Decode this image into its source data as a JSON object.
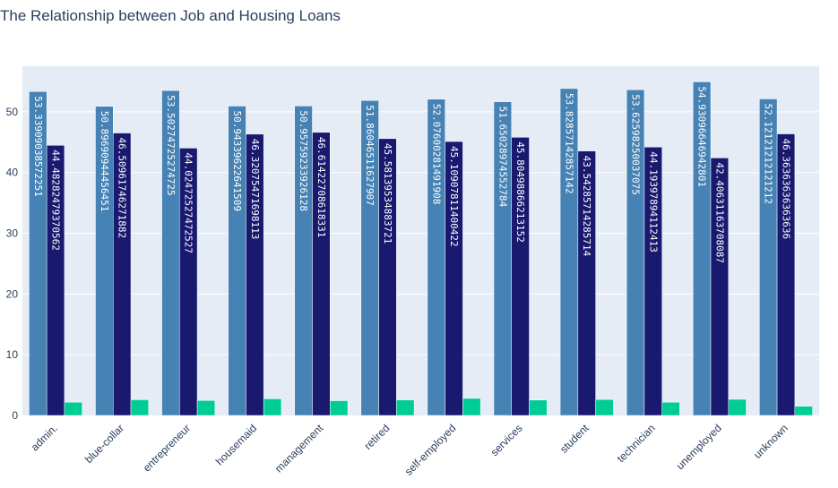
{
  "chart_data": {
    "type": "bar",
    "title": "The Relationship between Job and Housing Loans",
    "xlabel": "",
    "ylabel": "",
    "ylim": [
      0,
      57.5
    ],
    "yticks": [
      0,
      10,
      20,
      30,
      40,
      50
    ],
    "grid": true,
    "legend": "none",
    "categories": [
      "admin.",
      "blue-collar",
      "entrepreneur",
      "housemaid",
      "management",
      "retired",
      "self-employed",
      "services",
      "student",
      "technician",
      "unemployed",
      "unknown"
    ],
    "series": [
      {
        "color": "#4682b4",
        "values": [
          53.33909038572251,
          50.89690944456451,
          53.50274725274725,
          50.94339622641509,
          50.95759233926128,
          51.86046511627907,
          52.07600281491908,
          51.65028974552784,
          53.82857142857142,
          53.62598250037075,
          54.93096646942801,
          52.12121212121212
        ],
        "labels": [
          "53.33909038572251",
          "50.89690944456451",
          "53.50274725274725",
          "50.94339622641509",
          "50.95759233926128",
          "51.86046511627907",
          "52.07600281491908",
          "51.65028974552784",
          "53.82857142857142",
          "53.62598250037075",
          "54.93096646942801",
          "52.12121212121212"
        ]
      },
      {
        "color": "#191970",
        "values": [
          44.48282479370562,
          46.50961746271882,
          44.02472527472527,
          46.32075471698113,
          46.61422708618331,
          45.58139534883721,
          45.10907811400422,
          45.80498866213152,
          43.54285714285714,
          44.19397894112413,
          42.40631163708087,
          46.36363636363636
        ],
        "labels": [
          "44.48282479370562",
          "46.50961746271882",
          "44.02472527472527",
          "46.32075471698113",
          "46.61422708618331",
          "45.58139534883721",
          "45.10907811400422",
          "45.80498866213152",
          "43.54285714285714",
          "44.19397894112413",
          "42.40631163708087",
          "46.36363636363636"
        ]
      },
      {
        "color": "#00cc96",
        "values": [
          2.18,
          2.59,
          2.47,
          2.74,
          2.43,
          2.56,
          2.81,
          2.54,
          2.63,
          2.18,
          2.66,
          1.52
        ]
      }
    ]
  }
}
